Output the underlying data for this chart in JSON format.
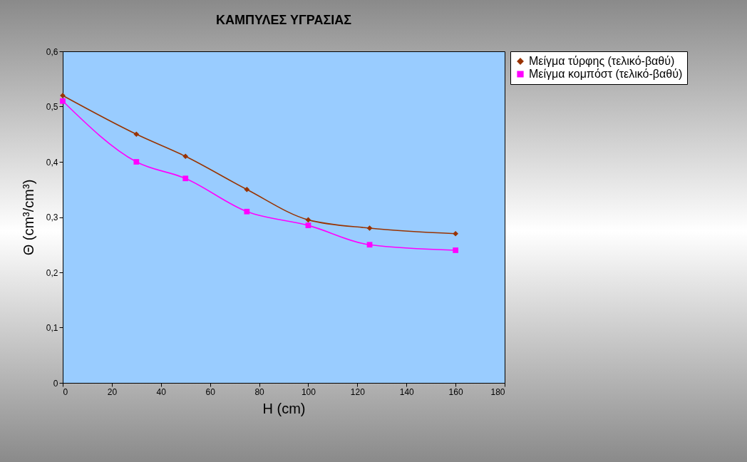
{
  "chart_data": {
    "type": "line",
    "title": "ΚΑΜΠΥΛΕΣ ΥΓΡΑΣΙΑΣ",
    "xlabel": "H (cm)",
    "ylabel": "Θ (cm³/cm³)",
    "x": [
      0,
      30,
      50,
      75,
      100,
      125,
      160
    ],
    "series": [
      {
        "name": "Μείγμα τύρφης   (τελικό-βαθύ)",
        "color": "#993300",
        "marker": "diamond",
        "values": [
          0.52,
          0.45,
          0.41,
          0.35,
          0.295,
          0.28,
          0.27
        ]
      },
      {
        "name": "Μείγμα κομπόστ (τελικό-βαθύ)",
        "color": "#ff00ff",
        "marker": "square",
        "values": [
          0.51,
          0.4,
          0.37,
          0.31,
          0.285,
          0.25,
          0.24
        ]
      }
    ],
    "xlim": [
      0,
      180
    ],
    "xticks": [
      0,
      20,
      40,
      60,
      80,
      100,
      120,
      140,
      160,
      180
    ],
    "ylim": [
      0,
      0.6
    ],
    "yticks": [
      0,
      {
        "value": 0.1,
        "label": "0,1"
      },
      {
        "value": 0.2,
        "label": "0,2"
      },
      {
        "value": 0.3,
        "label": "0,3"
      },
      {
        "value": 0.4,
        "label": "0,4"
      },
      {
        "value": 0.5,
        "label": "0,5"
      },
      {
        "value": 0.6,
        "label": "0,6"
      }
    ],
    "legend": "right"
  }
}
